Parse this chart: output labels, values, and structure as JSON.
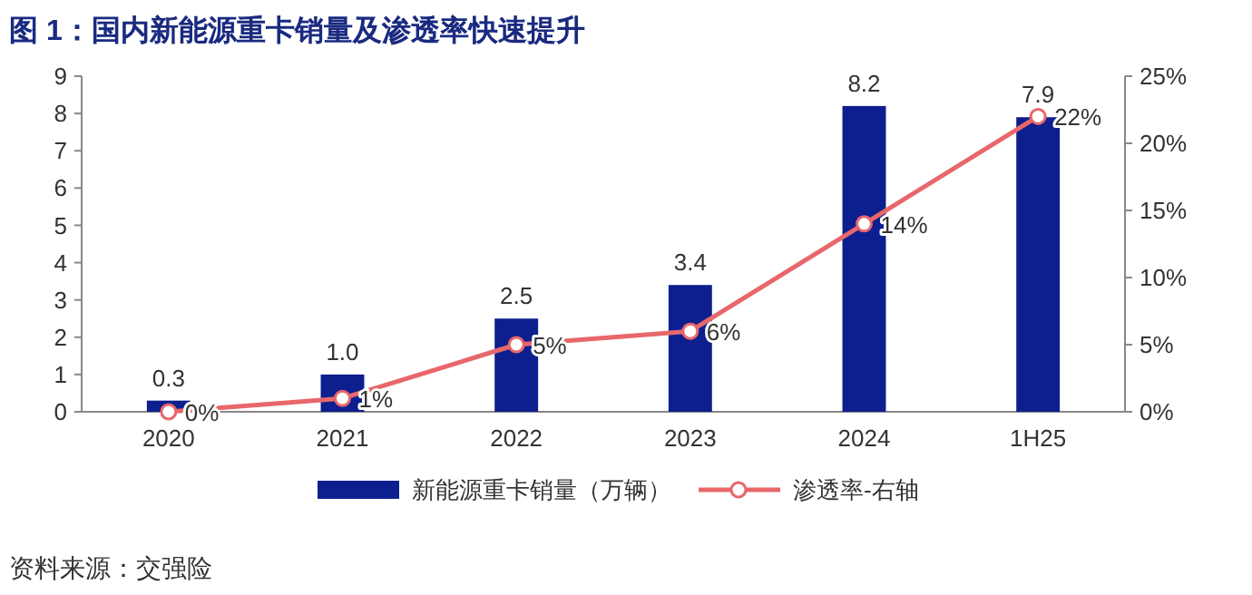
{
  "chart_data": {
    "type": "bar",
    "title": "图 1：国内新能源重卡销量及渗透率快速提升",
    "categories": [
      "2020",
      "2021",
      "2022",
      "2023",
      "2024",
      "1H25"
    ],
    "series": [
      {
        "name": "新能源重卡销量（万辆）",
        "color": "#0d1f8f",
        "values": [
          0.3,
          1.0,
          2.5,
          3.4,
          8.2,
          7.9
        ],
        "value_labels": [
          "0.3",
          "1.0",
          "2.5",
          "3.4",
          "8.2",
          "7.9"
        ]
      },
      {
        "name": "渗透率-右轴",
        "type": "line",
        "axis": "y2",
        "color": "#e8676b",
        "values": [
          0,
          1,
          5,
          6,
          14,
          22
        ],
        "value_labels": [
          "0%",
          "1%",
          "5%",
          "6%",
          "14%",
          "22%"
        ]
      }
    ],
    "ylim": [
      0,
      9
    ],
    "yticks": [
      0,
      1,
      2,
      3,
      4,
      5,
      6,
      7,
      8,
      9
    ],
    "y2lim": [
      0,
      25
    ],
    "y2ticks": [
      {
        "value": 0,
        "label": "0%"
      },
      {
        "value": 5,
        "label": "5%"
      },
      {
        "value": 10,
        "label": "10%"
      },
      {
        "value": 15,
        "label": "15%"
      },
      {
        "value": 20,
        "label": "20%"
      },
      {
        "value": 25,
        "label": "25%"
      }
    ],
    "legend": "bottom",
    "marker": "circle",
    "annotations": [
      "资料来源：交强险"
    ]
  }
}
